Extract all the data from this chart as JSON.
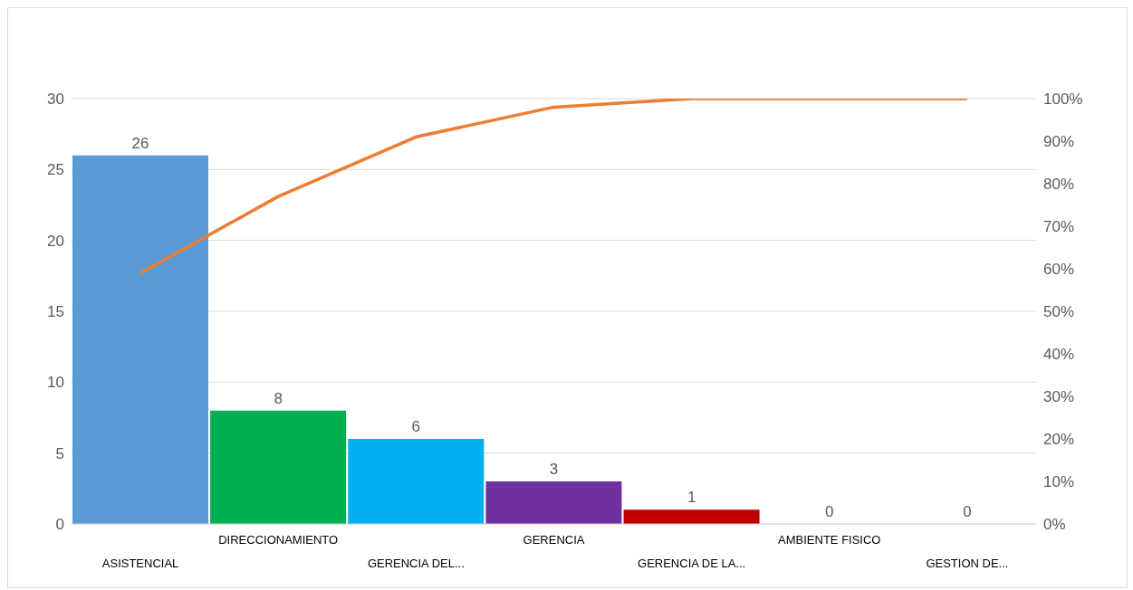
{
  "chart_data": {
    "type": "bar",
    "categories": [
      "ASISTENCIAL",
      "DIRECCIONAMIENTO",
      "GERENCIA DEL...",
      "GERENCIA",
      "GERENCIA DE LA...",
      "AMBIENTE FISICO",
      "GESTION DE..."
    ],
    "series": [
      {
        "colors": [
          "#5b9bd5",
          "#00b050",
          "#00b0f0",
          "#7030a0",
          "#c00000",
          "#5b9bd5",
          "#5b9bd5"
        ],
        "values": [
          26,
          8,
          6,
          3,
          1,
          0,
          0
        ],
        "value_labels": [
          "26",
          "8",
          "6",
          "3",
          "1",
          "0",
          "0"
        ]
      },
      {
        "type": "line",
        "axis": "y2",
        "color": "#ed7d31",
        "values": [
          59,
          77,
          91,
          98,
          100,
          100,
          100
        ]
      }
    ],
    "ylim": [
      0,
      30
    ],
    "yticks": [
      0,
      5,
      10,
      15,
      20,
      25,
      30
    ],
    "y2lim": [
      0,
      100
    ],
    "y2ticks": [
      {
        "value": 0,
        "label": "0%"
      },
      {
        "value": 10,
        "label": "10%"
      },
      {
        "value": 20,
        "label": "20%"
      },
      {
        "value": 30,
        "label": "30%"
      },
      {
        "value": 40,
        "label": "40%"
      },
      {
        "value": 50,
        "label": "50%"
      },
      {
        "value": 60,
        "label": "60%"
      },
      {
        "value": 70,
        "label": "70%"
      },
      {
        "value": 80,
        "label": "80%"
      },
      {
        "value": 90,
        "label": "90%"
      },
      {
        "value": 100,
        "label": "100%"
      }
    ],
    "grid": "y",
    "marker": "none",
    "line_style": "solid"
  }
}
